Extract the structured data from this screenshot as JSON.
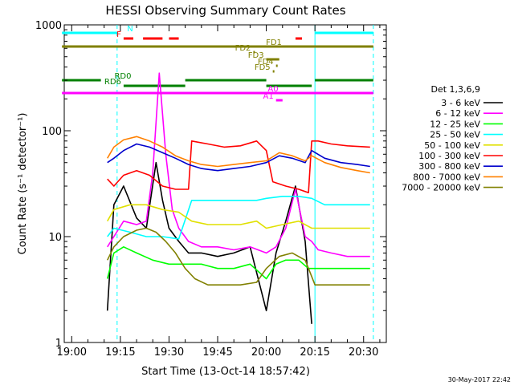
{
  "chart_data": {
    "type": "line",
    "title": "HESSI Observing Summary Count Rates",
    "xlabel": "Start Time (13-Oct-14 18:57:42)",
    "ylabel": "Count Rate (s⁻¹ detector⁻¹)",
    "y_scale": "log",
    "ylim": [
      1,
      1000
    ],
    "xlim": [
      "18:57:42",
      "20:37:00"
    ],
    "x_ticks": [
      "19:00",
      "19:15",
      "19:30",
      "19:45",
      "20:00",
      "20:15",
      "20:30"
    ],
    "y_ticks": [
      "1",
      "10",
      "100",
      "1000"
    ],
    "footer_date": "30-May-2017 22:42",
    "legend": {
      "position": "right",
      "title": "Det 1,3,6,9"
    },
    "series": [
      {
        "name": "3 - 6 keV",
        "color": "#000000",
        "x": [
          "19:11",
          "19:13",
          "19:16",
          "19:20",
          "19:23",
          "19:26",
          "19:28",
          "19:30",
          "19:33",
          "19:36",
          "19:40",
          "19:45",
          "19:50",
          "19:55",
          "20:00",
          "20:03",
          "20:06",
          "20:09",
          "20:12",
          "20:14"
        ],
        "y": [
          2,
          20,
          30,
          15,
          12,
          50,
          22,
          12,
          9,
          7,
          7,
          6.5,
          7,
          8,
          2,
          7,
          14,
          30,
          9,
          1.5
        ]
      },
      {
        "name": "6 - 12 keV",
        "color": "#ff00ff",
        "x": [
          "19:11",
          "19:13",
          "19:16",
          "19:20",
          "19:23",
          "19:25",
          "19:27",
          "19:29",
          "19:31",
          "19:33",
          "19:36",
          "19:40",
          "19:45",
          "19:50",
          "19:55",
          "20:00",
          "20:03",
          "20:06",
          "20:09",
          "20:12",
          "20:14",
          "20:16",
          "20:20",
          "20:25",
          "20:30",
          "20:32"
        ],
        "y": [
          8,
          10,
          14,
          13,
          14,
          40,
          350,
          60,
          18,
          12,
          9,
          8,
          8,
          7.5,
          8,
          7,
          8,
          12,
          28,
          10,
          9,
          7.5,
          7,
          6.5,
          6.5,
          6.5
        ]
      },
      {
        "name": "12 - 25 keV",
        "color": "#00ff00",
        "x": [
          "19:11",
          "19:13",
          "19:16",
          "19:20",
          "19:25",
          "19:30",
          "19:35",
          "19:40",
          "19:45",
          "19:50",
          "19:55",
          "20:00",
          "20:03",
          "20:06",
          "20:10",
          "20:13",
          "20:17",
          "20:22",
          "20:27",
          "20:32"
        ],
        "y": [
          4,
          7,
          8,
          7,
          6,
          5.5,
          5.5,
          5.5,
          5,
          5,
          5.5,
          4,
          5.5,
          6,
          6,
          5,
          5,
          5,
          5,
          5
        ]
      },
      {
        "name": "25 - 50 keV",
        "color": "#00ffff",
        "x": [
          "19:11",
          "19:13",
          "19:18",
          "19:23",
          "19:28",
          "19:33",
          "19:37",
          "19:42",
          "19:47",
          "19:52",
          "19:57",
          "20:00",
          "20:05",
          "20:10",
          "20:14",
          "20:18",
          "20:23",
          "20:28",
          "20:32"
        ],
        "y": [
          10,
          12,
          11,
          10,
          10,
          9.5,
          22,
          22,
          22,
          22,
          22,
          23,
          24,
          24,
          23,
          20,
          20,
          20,
          20
        ]
      },
      {
        "name": "50 - 100 keV",
        "color": "#e0e000",
        "x": [
          "19:11",
          "19:13",
          "19:18",
          "19:23",
          "19:28",
          "19:33",
          "19:37",
          "19:42",
          "19:47",
          "19:52",
          "19:57",
          "20:00",
          "20:05",
          "20:10",
          "20:14",
          "20:18",
          "20:23",
          "20:28",
          "20:32"
        ],
        "y": [
          14,
          18,
          20,
          20,
          18,
          17,
          14,
          13,
          13,
          13,
          14,
          12,
          13,
          14,
          12,
          12,
          12,
          12,
          12
        ]
      },
      {
        "name": "100 - 300 keV",
        "color": "#ff0000",
        "x": [
          "19:11",
          "19:13",
          "19:16",
          "19:20",
          "19:24",
          "19:28",
          "19:32",
          "19:36",
          "19:37",
          "19:42",
          "19:47",
          "19:52",
          "19:57",
          "20:00",
          "20:02",
          "20:06",
          "20:10",
          "20:13",
          "20:14",
          "20:16",
          "20:20",
          "20:25",
          "20:32"
        ],
        "y": [
          35,
          30,
          38,
          42,
          38,
          30,
          28,
          28,
          80,
          75,
          70,
          72,
          80,
          65,
          33,
          30,
          28,
          26,
          80,
          80,
          75,
          72,
          70
        ]
      },
      {
        "name": "300 - 800 keV",
        "color": "#0000cc",
        "x": [
          "19:11",
          "19:13",
          "19:16",
          "19:20",
          "19:24",
          "19:28",
          "19:32",
          "19:36",
          "19:40",
          "19:45",
          "19:50",
          "19:55",
          "20:00",
          "20:04",
          "20:08",
          "20:12",
          "20:14",
          "20:18",
          "20:23",
          "20:28",
          "20:32"
        ],
        "y": [
          50,
          55,
          65,
          75,
          70,
          62,
          55,
          48,
          44,
          42,
          44,
          46,
          50,
          58,
          55,
          50,
          65,
          55,
          50,
          48,
          46
        ]
      },
      {
        "name": "800 - 7000 keV",
        "color": "#ff8000",
        "x": [
          "19:11",
          "19:13",
          "19:16",
          "19:20",
          "19:24",
          "19:28",
          "19:32",
          "19:36",
          "19:40",
          "19:45",
          "19:50",
          "19:55",
          "20:00",
          "20:04",
          "20:08",
          "20:12",
          "20:14",
          "20:18",
          "20:23",
          "20:28",
          "20:32"
        ],
        "y": [
          55,
          70,
          82,
          88,
          80,
          70,
          58,
          52,
          48,
          46,
          48,
          50,
          52,
          62,
          58,
          52,
          58,
          50,
          45,
          42,
          40
        ]
      },
      {
        "name": "7000 - 20000 keV",
        "color": "#808000",
        "x": [
          "19:11",
          "19:13",
          "19:16",
          "19:20",
          "19:23",
          "19:26",
          "19:29",
          "19:32",
          "19:35",
          "19:38",
          "19:42",
          "19:47",
          "19:52",
          "19:57",
          "20:00",
          "20:04",
          "20:08",
          "20:12",
          "20:15",
          "20:20",
          "20:25",
          "20:30",
          "20:32"
        ],
        "y": [
          6,
          8,
          10,
          11.5,
          12,
          11,
          9,
          7,
          5,
          4,
          3.5,
          3.5,
          3.5,
          3.7,
          5,
          6.5,
          7,
          6,
          3.5,
          3.5,
          3.5,
          3.5,
          3.5
        ]
      }
    ],
    "state_bars": [
      {
        "label": "N",
        "color": "#00ffff",
        "segments": [
          [
            "18:57",
            "19:14"
          ],
          [
            "20:15",
            "20:33"
          ]
        ]
      },
      {
        "label": "F",
        "color": "#ff0000",
        "segments": [
          [
            "19:16",
            "19:19"
          ],
          [
            "19:22",
            "19:28"
          ],
          [
            "19:30",
            "19:33"
          ],
          [
            "20:09",
            "20:11"
          ]
        ]
      },
      {
        "label": "FD1",
        "color": "#808000",
        "segments": [
          [
            "18:57",
            "20:33"
          ]
        ]
      },
      {
        "label": "FD2",
        "color": "#808000",
        "segments": [
          [
            "19:56",
            "19:56"
          ]
        ]
      },
      {
        "label": "FD3",
        "color": "#808000",
        "segments": [
          [
            "20:00",
            "20:04"
          ]
        ]
      },
      {
        "label": "FD4",
        "color": "#808000",
        "segments": [
          [
            "20:03",
            "20:03"
          ]
        ]
      },
      {
        "label": "FD5",
        "color": "#808000",
        "segments": [
          [
            "20:02",
            "20:02"
          ]
        ]
      },
      {
        "label": "RD0",
        "color": "#008000",
        "segments": [
          [
            "18:57",
            "19:09"
          ],
          [
            "19:35",
            "20:00"
          ],
          [
            "20:15",
            "20:33"
          ]
        ]
      },
      {
        "label": "RD6",
        "color": "#008000",
        "segments": [
          [
            "19:16",
            "19:35"
          ],
          [
            "20:00",
            "20:14"
          ]
        ]
      },
      {
        "label": "A0",
        "color": "#ff00ff",
        "segments": [
          [
            "18:57",
            "20:33"
          ]
        ]
      },
      {
        "label": "A1",
        "color": "#ff00ff",
        "segments": [
          [
            "20:03",
            "20:05"
          ]
        ]
      }
    ],
    "vertical_markers": [
      {
        "time": "19:14",
        "style": "dashed",
        "color": "#00ffff"
      },
      {
        "time": "20:15",
        "style": "solid",
        "color": "#00ffff"
      },
      {
        "time": "20:33",
        "style": "dashed",
        "color": "#00ffff"
      }
    ],
    "grid": false
  }
}
